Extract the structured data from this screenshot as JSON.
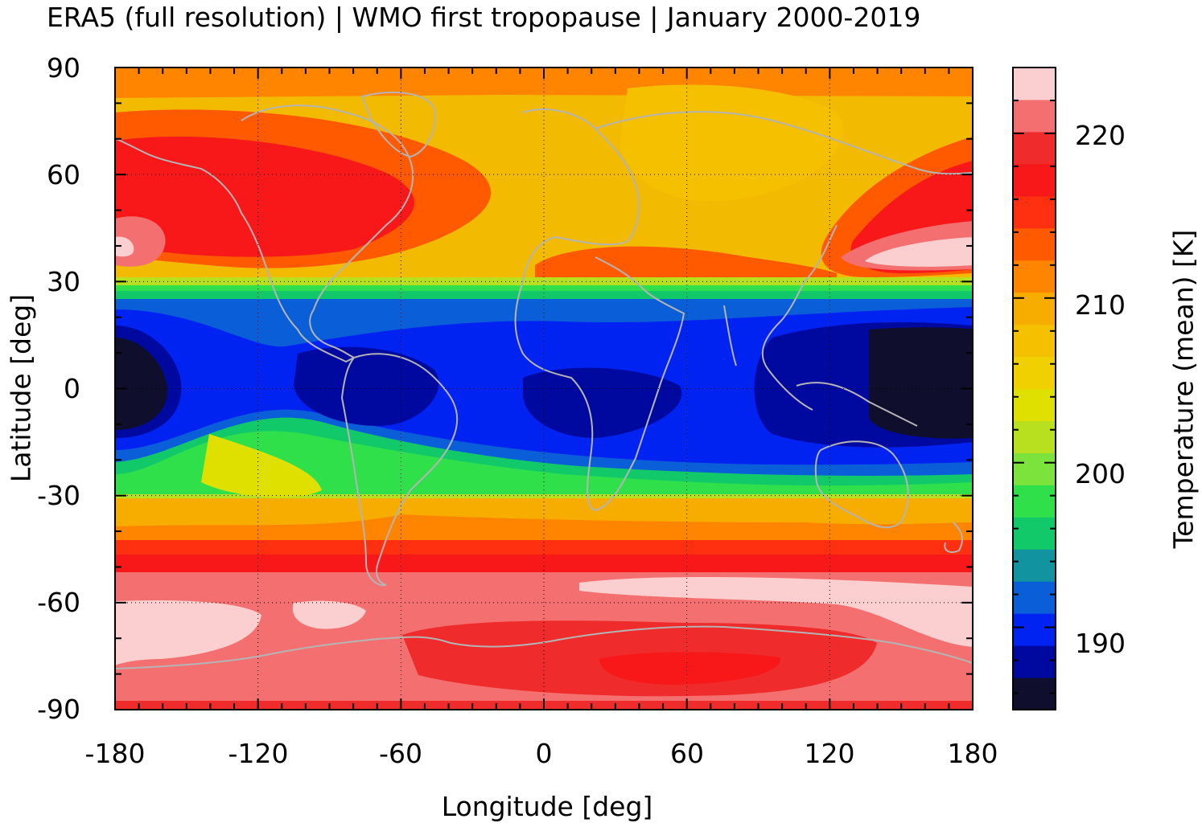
{
  "title": "ERA5 (full resolution) | WMO first tropopause | January 2000-2019",
  "x_axis": {
    "label": "Longitude [deg]",
    "ticks": [
      "-180",
      "-120",
      "-60",
      "0",
      "60",
      "120",
      "180"
    ],
    "range": [
      -180,
      180
    ]
  },
  "y_axis": {
    "label": "Latitude [deg]",
    "ticks": [
      "90",
      "60",
      "30",
      "0",
      "-30",
      "-60",
      "-90"
    ],
    "range": [
      -90,
      90
    ]
  },
  "colorbar": {
    "label": "Temperature (mean) [K]",
    "ticks": [
      "220",
      "210",
      "200",
      "190"
    ],
    "range": [
      185,
      224
    ],
    "colors": [
      "#0f0f2d",
      "#00099f",
      "#0023f2",
      "#0a5fd8",
      "#1193a0",
      "#12c96a",
      "#30e04a",
      "#7ce23c",
      "#b8e01e",
      "#e0e000",
      "#f0d000",
      "#f4c000",
      "#f7ac00",
      "#ff8400",
      "#ff5a00",
      "#ff3010",
      "#f8181a",
      "#ef2b2b",
      "#f47070",
      "#fbcfcf"
    ]
  },
  "map": {
    "coastlines_color": "#b4b4b4",
    "grid": "dotted"
  }
}
